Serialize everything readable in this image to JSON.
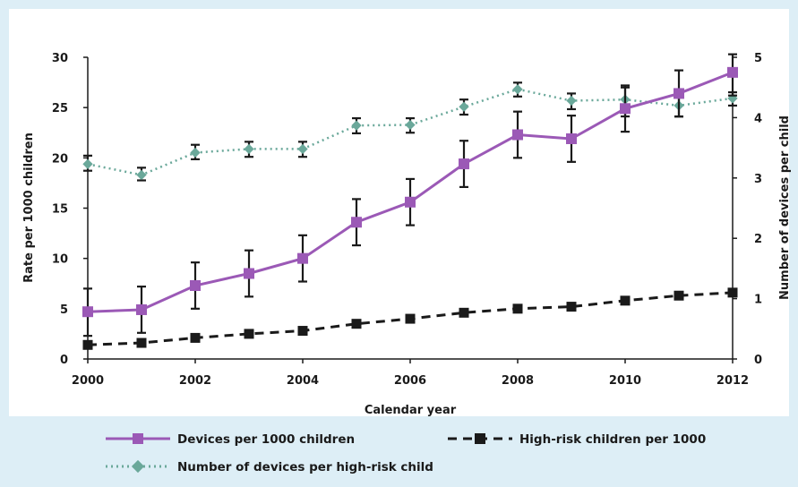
{
  "colors": {
    "background": "#ddeef6",
    "plot_background": "#ffffff",
    "devices": "#9b59b6",
    "high_risk": "#1a1a1a",
    "ratio": "#6aa89a",
    "error_bar": "#1a1a1a",
    "axis": "#1a1a1a"
  },
  "chart_data": {
    "type": "line",
    "xlabel": "Calendar year",
    "ylabel": "Rate per 1000 children",
    "y2label": "Number of devices per child",
    "xlim": [
      2000,
      2012
    ],
    "ylim": [
      0,
      30
    ],
    "y2lim": [
      0,
      5
    ],
    "xticks": [
      2000,
      2002,
      2004,
      2006,
      2008,
      2010,
      2012
    ],
    "yticks": [
      0,
      5,
      10,
      15,
      20,
      25,
      30
    ],
    "y2ticks": [
      0,
      1,
      2,
      3,
      4,
      5
    ],
    "grid": false,
    "legend_position": "bottom",
    "x": [
      2000,
      2001,
      2002,
      2003,
      2004,
      2005,
      2006,
      2007,
      2008,
      2009,
      2010,
      2011,
      2012
    ],
    "series": [
      {
        "name": "Devices per 1000 children",
        "axis": "left",
        "style": "solid",
        "marker": "square",
        "color": "#9b59b6",
        "values": [
          4.7,
          4.9,
          7.3,
          8.5,
          10.0,
          13.6,
          15.6,
          19.4,
          22.3,
          21.9,
          24.9,
          26.4,
          28.5
        ],
        "error_low": [
          2.3,
          2.6,
          5.0,
          6.2,
          7.7,
          11.3,
          13.3,
          17.1,
          20.0,
          19.6,
          22.6,
          24.1,
          26.2
        ],
        "error_high": [
          7.0,
          7.2,
          9.6,
          10.8,
          12.3,
          15.9,
          17.9,
          21.7,
          24.6,
          24.2,
          27.2,
          28.7,
          30.3
        ]
      },
      {
        "name": "High-risk children per 1000",
        "axis": "left",
        "style": "dashed",
        "marker": "square",
        "color": "#1a1a1a",
        "values": [
          1.4,
          1.6,
          2.1,
          2.5,
          2.8,
          3.5,
          4.0,
          4.6,
          5.0,
          5.2,
          5.8,
          6.3,
          6.6
        ]
      },
      {
        "name": "Number of devices per high-risk child",
        "axis": "right",
        "style": "dotted",
        "marker": "diamond",
        "color": "#6aa89a",
        "values": [
          3.23,
          3.05,
          3.42,
          3.48,
          3.48,
          3.87,
          3.88,
          4.18,
          4.47,
          4.28,
          4.3,
          4.2,
          4.32
        ],
        "error_low": [
          3.12,
          2.96,
          3.31,
          3.35,
          3.35,
          3.74,
          3.75,
          4.05,
          4.35,
          4.14,
          4.02,
          4.02,
          4.2
        ],
        "error_high": [
          3.37,
          3.17,
          3.55,
          3.6,
          3.6,
          3.99,
          3.99,
          4.3,
          4.58,
          4.4,
          4.5,
          4.38,
          4.42
        ]
      }
    ]
  }
}
